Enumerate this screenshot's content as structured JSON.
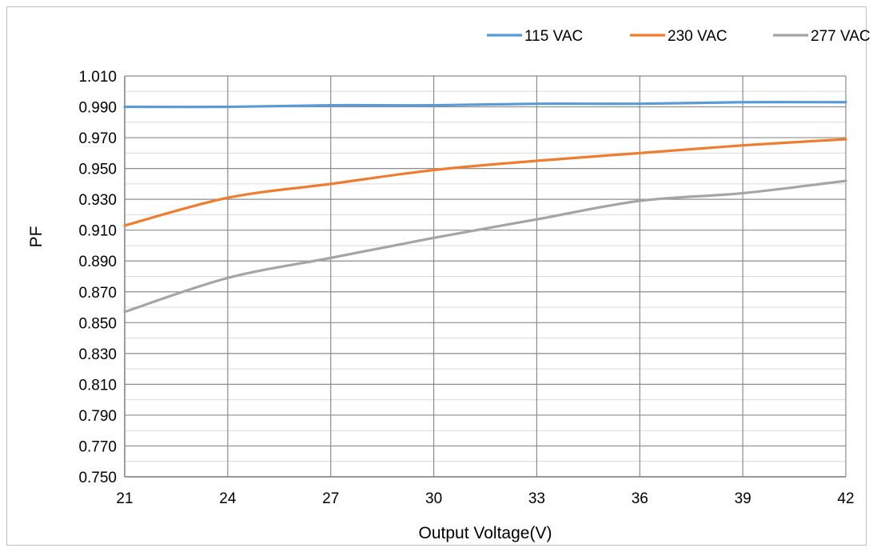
{
  "chart_data": {
    "type": "line",
    "title": "",
    "xlabel": "Output Voltage(V)",
    "ylabel": "PF",
    "x": [
      21,
      24,
      27,
      30,
      33,
      36,
      39,
      42
    ],
    "xticks": [
      "21",
      "24",
      "27",
      "30",
      "33",
      "36",
      "39",
      "42"
    ],
    "xlim": [
      21,
      42
    ],
    "ylim": [
      0.75,
      1.02
    ],
    "yticks": [
      "0.750",
      "0.770",
      "0.790",
      "0.810",
      "0.830",
      "0.850",
      "0.870",
      "0.890",
      "0.910",
      "0.930",
      "0.950",
      "0.970",
      "0.990",
      "1.010"
    ],
    "grid": true,
    "legend_position": "top-right",
    "series": [
      {
        "name": "115 VAC",
        "color": "#5b9bd5",
        "values": [
          0.99,
          0.99,
          0.991,
          0.991,
          0.992,
          0.992,
          0.993,
          0.993
        ]
      },
      {
        "name": "230 VAC",
        "color": "#ed7d31",
        "values": [
          0.913,
          0.931,
          0.94,
          0.949,
          0.955,
          0.96,
          0.965,
          0.969
        ]
      },
      {
        "name": "277 VAC",
        "color": "#a5a5a5",
        "values": [
          0.857,
          0.879,
          0.892,
          0.905,
          0.917,
          0.929,
          0.934,
          0.942
        ]
      }
    ]
  }
}
